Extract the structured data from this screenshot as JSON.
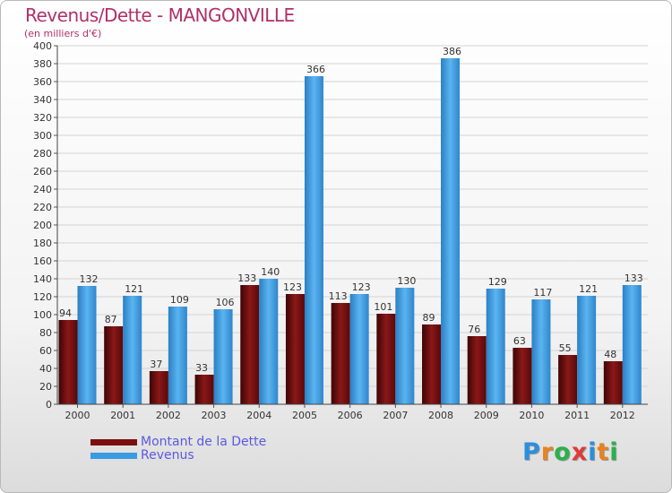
{
  "header": {
    "title": "Revenus/Dette - MANGONVILLE",
    "subtitle": "(en milliers d'€)"
  },
  "logo": {
    "letters": [
      "P",
      "r",
      "o",
      "x",
      "i",
      "t",
      "i"
    ],
    "colors": [
      "#2b8fdc",
      "#e8821e",
      "#2bb04a",
      "#e03a3a",
      "#2b8fdc",
      "#e8821e",
      "#2bb04a"
    ]
  },
  "colors": {
    "dette": "#7a1010",
    "revenus": "#3b9be0",
    "title": "#b0306a",
    "legend_text": "#5a5ae0"
  },
  "chart_data": {
    "type": "bar",
    "title": "Revenus/Dette - MANGONVILLE",
    "ylabel": "(en milliers d'€)",
    "xlabel": "",
    "ylim": [
      0,
      400
    ],
    "ytick_step": 20,
    "grid": true,
    "legend_position": "bottom-left",
    "categories": [
      "2000",
      "2001",
      "2002",
      "2003",
      "2004",
      "2005",
      "2006",
      "2007",
      "2008",
      "2009",
      "2010",
      "2011",
      "2012"
    ],
    "series": [
      {
        "name": "Montant de la Dette",
        "values": [
          94,
          87,
          37,
          33,
          133,
          123,
          113,
          101,
          89,
          76,
          63,
          55,
          48
        ]
      },
      {
        "name": "Revenus",
        "values": [
          132,
          121,
          109,
          106,
          140,
          366,
          123,
          130,
          386,
          129,
          117,
          121,
          133
        ]
      }
    ]
  }
}
